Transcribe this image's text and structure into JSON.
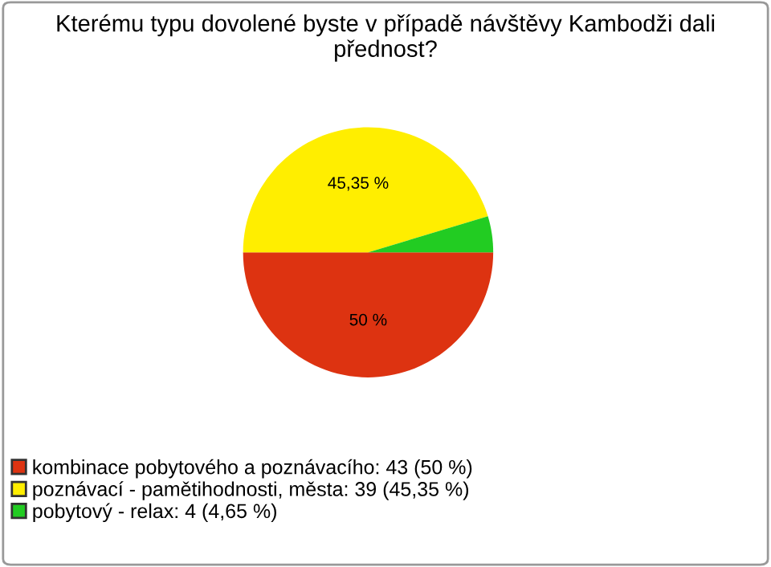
{
  "chart_data": {
    "type": "pie",
    "title": "Kterému typu dovolené byste v případě návštěvy Kambodži dali přednost?",
    "categories": [
      "kombinace pobytového a poznávacího: 43 (50 %)",
      "poznávací - pamětihodnosti, města: 39 (45,35 %)",
      "pobytový - relax: 4 (4,65 %)"
    ],
    "values": [
      50,
      45.35,
      4.65
    ],
    "colors": [
      "#dd3311",
      "#ffee00",
      "#22cc22"
    ],
    "value_labels": [
      "50 %",
      "45,35 %",
      null
    ],
    "legend": "bottom left"
  }
}
